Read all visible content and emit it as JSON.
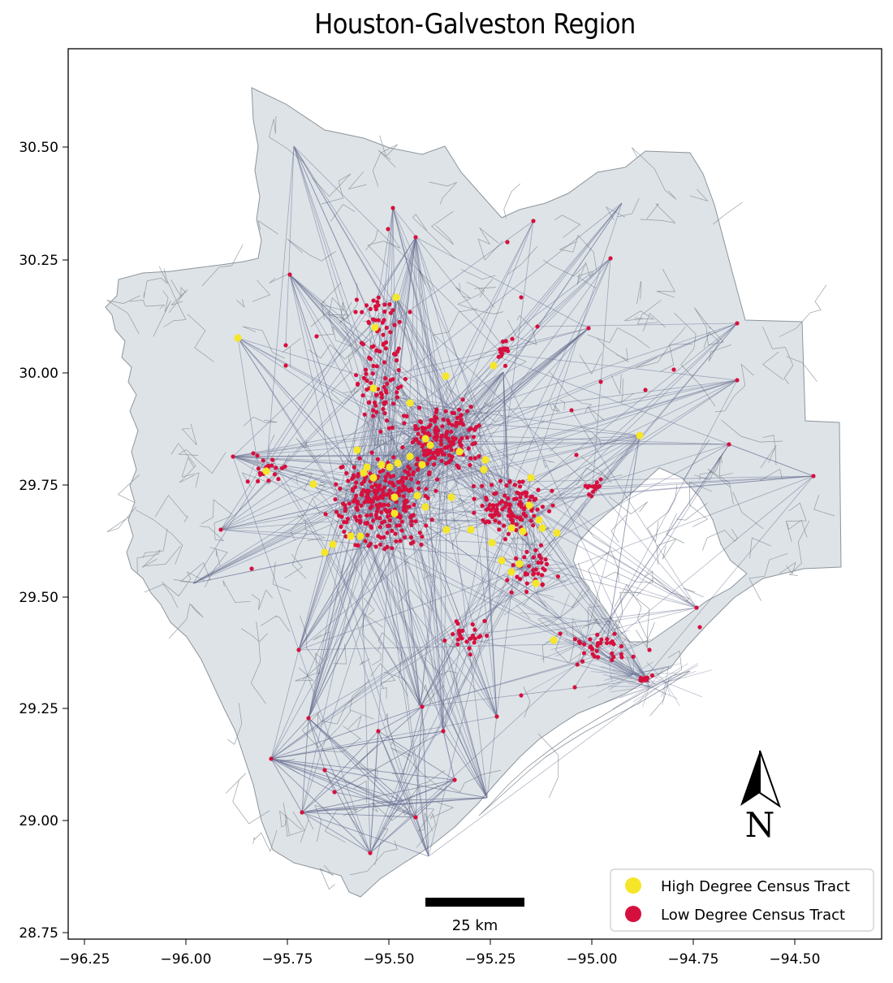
{
  "title": "Houston-Galveston Region",
  "axes": {
    "x_ticks": [
      "−96.25",
      "−96.00",
      "−95.75",
      "−95.50",
      "−95.25",
      "−95.00",
      "−94.75",
      "−94.50"
    ],
    "y_ticks": [
      "30.50",
      "30.25",
      "30.00",
      "29.75",
      "29.50",
      "29.25",
      "29.00",
      "28.75"
    ]
  },
  "legend": {
    "items": [
      {
        "label": "High Degree Census Tract",
        "color": "#f5e62a"
      },
      {
        "label": "Low  Degree Census Tract",
        "color": "#d6103e"
      }
    ]
  },
  "scale_bar": {
    "label": "25 km"
  },
  "north_arrow": {
    "label": "N"
  },
  "colors": {
    "land": "#dde3e7",
    "tract_border": "#8d959c",
    "edge": "#3a4270",
    "high": "#f5e62a",
    "low": "#d6103e"
  }
}
